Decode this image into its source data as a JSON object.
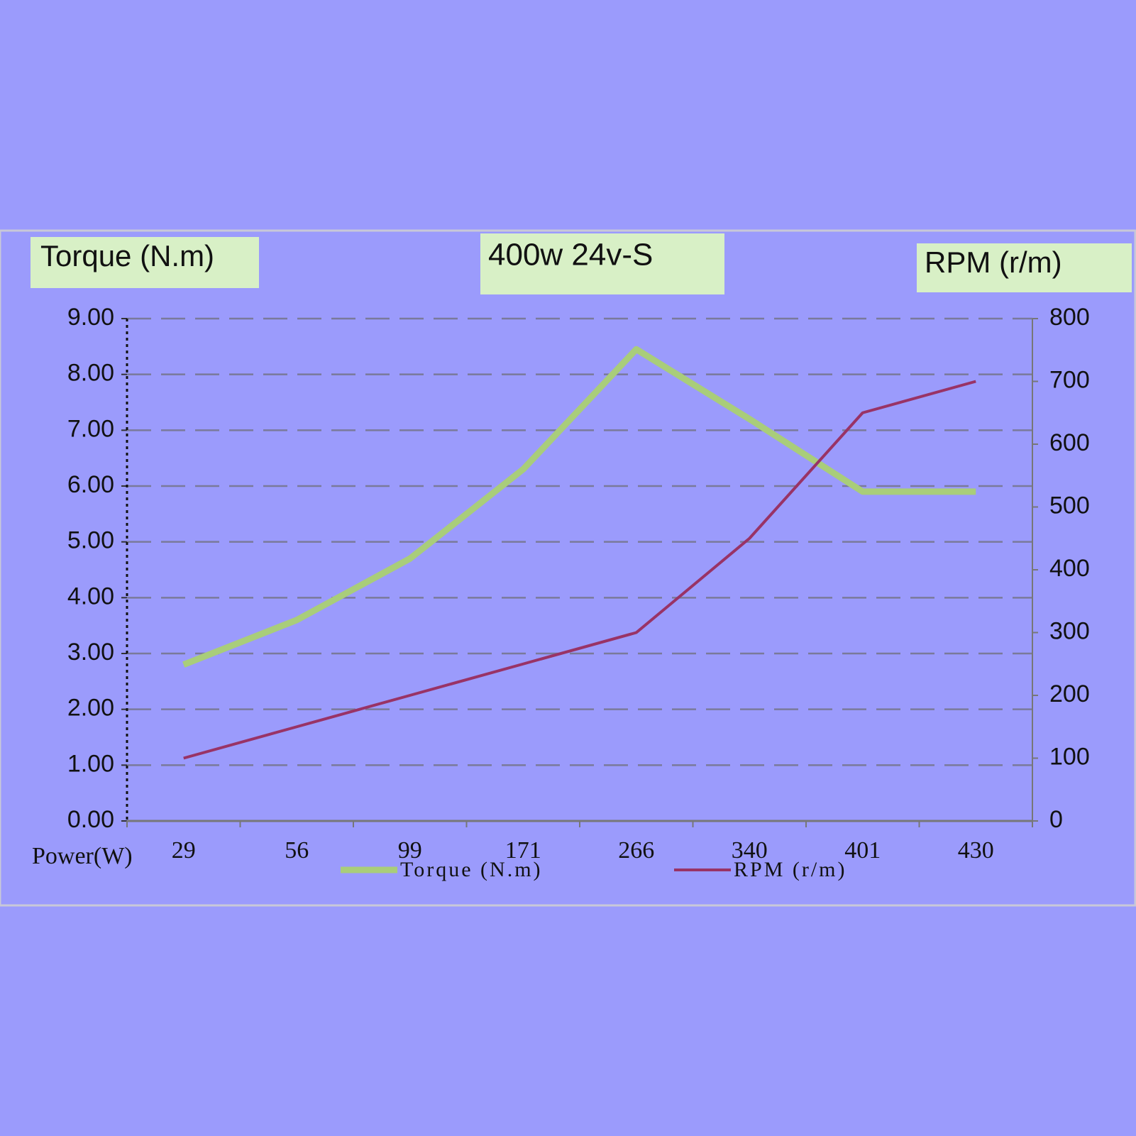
{
  "chart_data": {
    "type": "line",
    "title": "400w 24v-S",
    "y_label": "Torque (N.m)",
    "y2_label": "RPM (r/m)",
    "x_label": "Power(W)",
    "categories": [
      "29",
      "56",
      "99",
      "171",
      "266",
      "340",
      "401",
      "430"
    ],
    "series": [
      {
        "name": "Torque (N.m)",
        "color": "#a9cd7a",
        "values": [
          2.8,
          3.6,
          4.7,
          6.3,
          8.45,
          7.2,
          5.9,
          5.9
        ]
      },
      {
        "name": "RPM  (r/m)",
        "color": "#993366",
        "axis": "y2",
        "values": [
          100,
          150,
          200,
          250,
          300,
          450,
          650,
          700
        ]
      }
    ],
    "ylim": [
      0,
      9
    ],
    "yticks": [
      {
        "value": 0,
        "label": "0.00"
      },
      {
        "value": 1,
        "label": "1.00"
      },
      {
        "value": 2,
        "label": "2.00"
      },
      {
        "value": 3,
        "label": "3.00"
      },
      {
        "value": 4,
        "label": "4.00"
      },
      {
        "value": 5,
        "label": "5.00"
      },
      {
        "value": 6,
        "label": "6.00"
      },
      {
        "value": 7,
        "label": "7.00"
      },
      {
        "value": 8,
        "label": "8.00"
      },
      {
        "value": 9,
        "label": "9.00"
      }
    ],
    "y2lim": [
      0,
      800
    ],
    "y2ticks": [
      0,
      100,
      200,
      300,
      400,
      500,
      600,
      700,
      800
    ],
    "grid": true
  }
}
